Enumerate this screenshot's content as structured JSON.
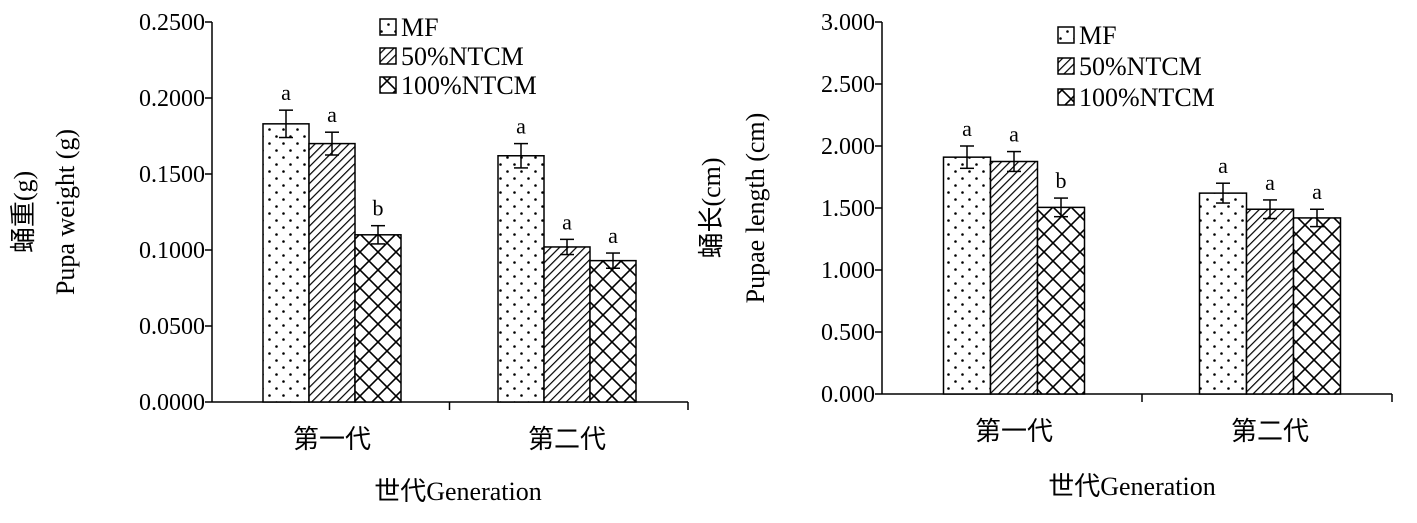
{
  "chart_data": [
    {
      "type": "bar",
      "title": "",
      "categories": [
        "第一代",
        "第二代"
      ],
      "series": [
        {
          "name": "MF",
          "values": [
            0.183,
            0.162
          ],
          "errors": [
            0.009,
            0.008
          ],
          "letters": [
            "a",
            "a"
          ]
        },
        {
          "name": "50%NTCM",
          "values": [
            0.17,
            0.102
          ],
          "errors": [
            0.0075,
            0.005
          ],
          "letters": [
            "a",
            "a"
          ]
        },
        {
          "name": "100%NTCM",
          "values": [
            0.11,
            0.093
          ],
          "errors": [
            0.006,
            0.005
          ],
          "letters": [
            "b",
            "a"
          ]
        }
      ],
      "xlabel": "世代Generation",
      "ylabel_cn": "蛹重(g)",
      "ylabel_en": "Pupa weight (g)",
      "ylim": [
        0,
        0.25
      ],
      "yticks": [
        "0.0000",
        "0.0500",
        "0.1000",
        "0.1500",
        "0.2000",
        "0.2500"
      ],
      "grid": false,
      "legend": "top-center"
    },
    {
      "type": "bar",
      "title": "",
      "categories": [
        "第一代",
        "第二代"
      ],
      "series": [
        {
          "name": "MF",
          "values": [
            1.91,
            1.62
          ],
          "errors": [
            0.09,
            0.08
          ],
          "letters": [
            "a",
            "a"
          ]
        },
        {
          "name": "50%NTCM",
          "values": [
            1.875,
            1.49
          ],
          "errors": [
            0.08,
            0.075
          ],
          "letters": [
            "a",
            "a"
          ]
        },
        {
          "name": "100%NTCM",
          "values": [
            1.505,
            1.42
          ],
          "errors": [
            0.075,
            0.07
          ],
          "letters": [
            "b",
            "a"
          ]
        }
      ],
      "xlabel": "世代Generation",
      "ylabel_cn": "蛹长(cm)",
      "ylabel_en": "Pupae length (cm)",
      "ylim": [
        0,
        3
      ],
      "yticks": [
        "0.000",
        "0.500",
        "1.000",
        "1.500",
        "2.000",
        "2.500",
        "3.000"
      ],
      "grid": false,
      "legend": "top-center"
    }
  ]
}
